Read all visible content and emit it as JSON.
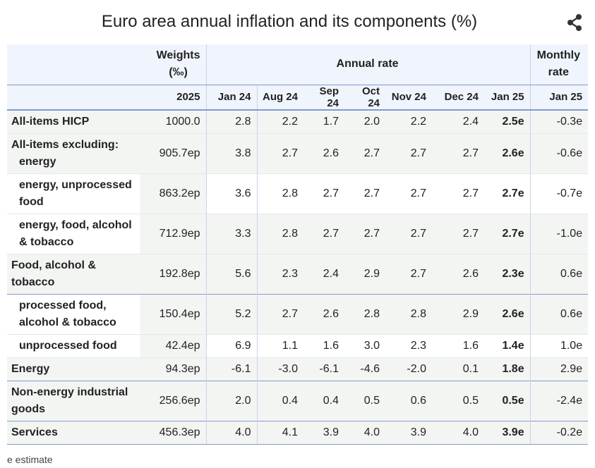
{
  "title": "Euro area annual inflation and its components (%)",
  "colors": {
    "header_bg": "#f0f4fc",
    "row_shade": "#f3f5f3",
    "rule": "#7f9bd0"
  },
  "header": {
    "weights": "Weights",
    "weights_unit": "(‰)",
    "annual_rate": "Annual rate",
    "monthly": "Monthly",
    "monthly_rate": "rate",
    "weights_year": "2025",
    "months": [
      "Jan 24",
      "Aug 24",
      "Sep 24",
      "Oct 24",
      "Nov 24",
      "Dec 24",
      "Jan 25"
    ],
    "monthly_month": "Jan 25"
  },
  "rows": [
    {
      "label": "All-items HICP",
      "weight": "1000.0",
      "values": [
        "2.8",
        "2.2",
        "1.7",
        "2.0",
        "2.2",
        "2.4",
        "2.5e"
      ],
      "monthly": "-0.3e"
    },
    {
      "label": "All-items excluding:",
      "label2": "energy",
      "weight": "905.7ep",
      "values": [
        "3.8",
        "2.7",
        "2.6",
        "2.7",
        "2.7",
        "2.7",
        "2.6e"
      ],
      "monthly": "-0.6e"
    },
    {
      "label": "energy, unprocessed",
      "label2": "food",
      "weight": "863.2ep",
      "values": [
        "3.6",
        "2.8",
        "2.7",
        "2.7",
        "2.7",
        "2.7",
        "2.7e"
      ],
      "monthly": "-0.7e"
    },
    {
      "label": "energy, food, alcohol",
      "label2": "& tobacco",
      "weight": "712.9ep",
      "values": [
        "3.3",
        "2.8",
        "2.7",
        "2.7",
        "2.7",
        "2.7",
        "2.7e"
      ],
      "monthly": "-1.0e"
    },
    {
      "label": "Food, alcohol &",
      "label2": "tobacco",
      "weight": "192.8ep",
      "values": [
        "5.6",
        "2.3",
        "2.4",
        "2.9",
        "2.7",
        "2.6",
        "2.3e"
      ],
      "monthly": "0.6e"
    },
    {
      "label": "processed food,",
      "label2": "alcohol & tobacco",
      "weight": "150.4ep",
      "values": [
        "5.2",
        "2.7",
        "2.6",
        "2.8",
        "2.8",
        "2.9",
        "2.6e"
      ],
      "monthly": "0.6e"
    },
    {
      "label": "unprocessed food",
      "weight": "42.4ep",
      "values": [
        "6.9",
        "1.1",
        "1.6",
        "3.0",
        "2.3",
        "1.6",
        "1.4e"
      ],
      "monthly": "1.0e"
    },
    {
      "label": "Energy",
      "weight": "94.3ep",
      "values": [
        "-6.1",
        "-3.0",
        "-6.1",
        "-4.6",
        "-2.0",
        "0.1",
        "1.8e"
      ],
      "monthly": "2.9e"
    },
    {
      "label": "Non-energy industrial",
      "label2": "goods",
      "weight": "256.6ep",
      "values": [
        "2.0",
        "0.4",
        "0.4",
        "0.5",
        "0.6",
        "0.5",
        "0.5e"
      ],
      "monthly": "-2.4e"
    },
    {
      "label": "Services",
      "weight": "456.3ep",
      "values": [
        "4.0",
        "4.1",
        "3.9",
        "4.0",
        "3.9",
        "4.0",
        "3.9e"
      ],
      "monthly": "-0.2e"
    }
  ],
  "footnote": "e estimate",
  "share_icon": "share-icon"
}
